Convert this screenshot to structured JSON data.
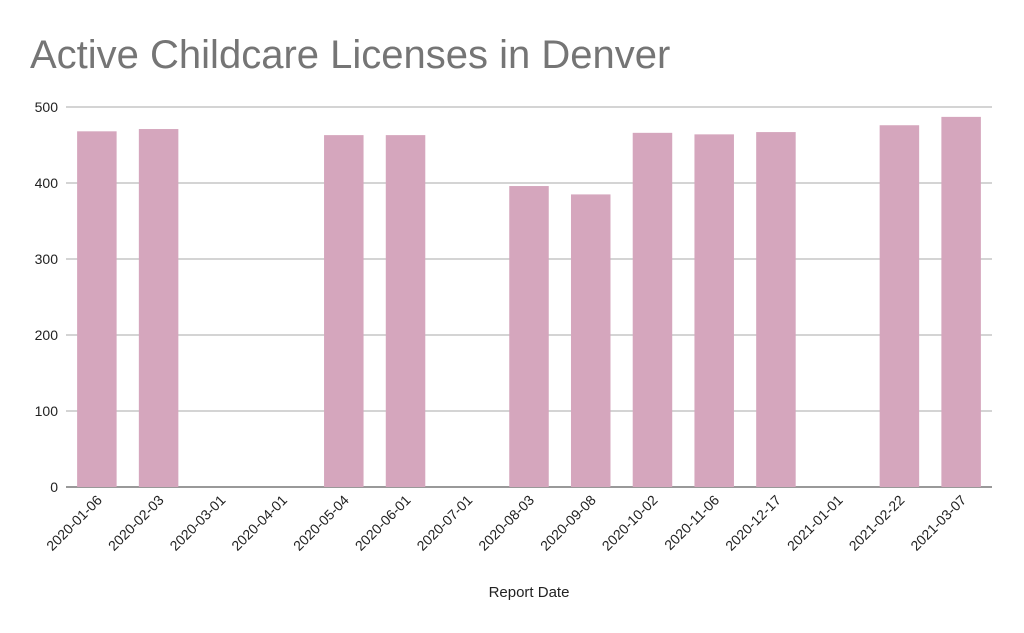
{
  "chart_data": {
    "type": "bar",
    "title": "Active Childcare Licenses in Denver",
    "x_label": "Report Date",
    "categories": [
      "2020-01-06",
      "2020-02-03",
      "2020-03-01",
      "2020-04-01",
      "2020-05-04",
      "2020-06-01",
      "2020-07-01",
      "2020-08-03",
      "2020-09-08",
      "2020-10-02",
      "2020-11-06",
      "2020-12-17",
      "2021-01-01",
      "2021-02-22",
      "2021-03-07"
    ],
    "values": [
      468,
      471,
      null,
      null,
      463,
      463,
      null,
      396,
      385,
      466,
      464,
      467,
      null,
      476,
      487
    ],
    "color": "#d5a6bd",
    "ylim": [
      0,
      500
    ],
    "yticks": [
      0,
      100,
      200,
      300,
      400,
      500
    ],
    "grid": true
  }
}
